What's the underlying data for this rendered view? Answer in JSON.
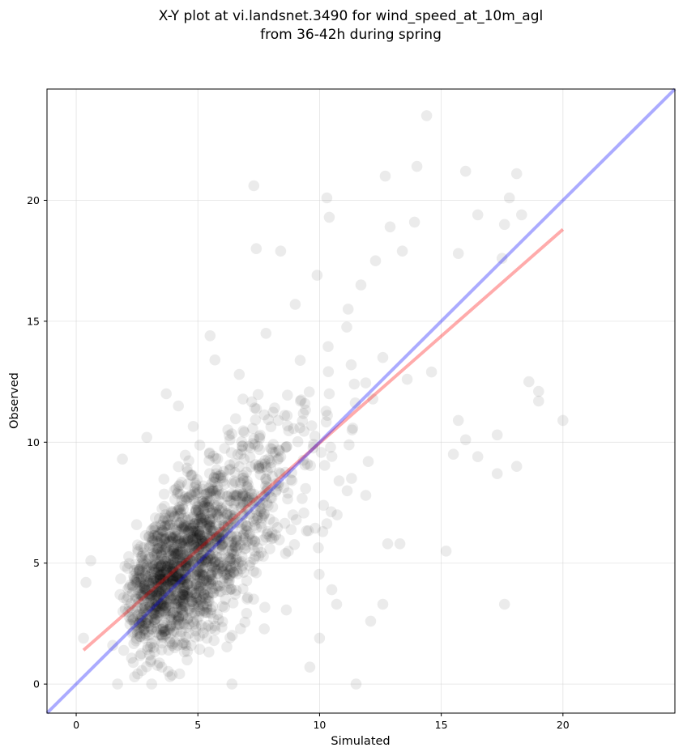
{
  "chart_data": {
    "type": "scatter",
    "title_lines": [
      "X-Y plot at vi.landsnet.3490 for wind_speed_at_10m_agl",
      "from 36-42h during spring"
    ],
    "xlabel": "Simulated",
    "ylabel": "Observed",
    "xlim": [
      -1.2,
      24.6
    ],
    "ylim": [
      -1.2,
      24.6
    ],
    "xticks": [
      0,
      5,
      10,
      15,
      20
    ],
    "yticks": [
      0,
      5,
      10,
      15,
      20
    ],
    "tick_labels": {
      "x": [
        "0",
        "5",
        "10",
        "15",
        "20"
      ],
      "y": [
        "0",
        "5",
        "10",
        "15",
        "20"
      ]
    },
    "grid": true,
    "point_color": "#000000",
    "point_alpha": 0.08,
    "points_approx_count": 1800,
    "points_core_cluster": {
      "x_center": 4.8,
      "y_center": 5.5
    },
    "points": [
      [
        14.4,
        23.5
      ],
      [
        14.0,
        21.4
      ],
      [
        16.0,
        21.2
      ],
      [
        18.1,
        21.1
      ],
      [
        12.7,
        21.0
      ],
      [
        7.3,
        20.6
      ],
      [
        17.8,
        20.1
      ],
      [
        10.3,
        20.1
      ],
      [
        10.4,
        19.3
      ],
      [
        16.5,
        19.4
      ],
      [
        18.3,
        19.4
      ],
      [
        13.9,
        19.1
      ],
      [
        17.6,
        19.0
      ],
      [
        12.9,
        18.9
      ],
      [
        15.7,
        17.8
      ],
      [
        7.4,
        18.0
      ],
      [
        8.4,
        17.9
      ],
      [
        17.5,
        17.6
      ],
      [
        20.0,
        10.9
      ],
      [
        18.6,
        12.5
      ],
      [
        19.0,
        12.1
      ],
      [
        19.0,
        11.7
      ],
      [
        18.1,
        9.0
      ],
      [
        17.3,
        10.3
      ],
      [
        17.3,
        8.7
      ],
      [
        16.0,
        10.1
      ],
      [
        16.5,
        9.4
      ],
      [
        15.7,
        10.9
      ],
      [
        15.5,
        9.5
      ],
      [
        15.2,
        5.5
      ],
      [
        17.6,
        3.3
      ],
      [
        11.5,
        0.0
      ],
      [
        12.1,
        2.6
      ],
      [
        12.6,
        3.3
      ],
      [
        13.3,
        5.8
      ],
      [
        12.8,
        5.8
      ],
      [
        10.7,
        3.3
      ],
      [
        10.5,
        3.9
      ],
      [
        10.0,
        1.9
      ],
      [
        9.6,
        0.7
      ],
      [
        6.4,
        0.0
      ],
      [
        3.1,
        0.0
      ],
      [
        2.4,
        0.3
      ],
      [
        1.7,
        0.0
      ],
      [
        0.3,
        1.9
      ],
      [
        0.4,
        4.2
      ],
      [
        0.6,
        5.1
      ],
      [
        1.9,
        9.3
      ],
      [
        2.9,
        10.2
      ],
      [
        3.7,
        12.0
      ],
      [
        4.2,
        11.5
      ],
      [
        5.5,
        14.4
      ],
      [
        5.7,
        13.4
      ],
      [
        6.7,
        12.8
      ],
      [
        7.8,
        14.5
      ],
      [
        9.0,
        15.7
      ],
      [
        9.9,
        16.9
      ],
      [
        11.7,
        16.5
      ],
      [
        12.3,
        17.5
      ],
      [
        13.4,
        17.9
      ],
      [
        8.3,
        10.9
      ],
      [
        9.4,
        11.6
      ],
      [
        10.4,
        12.0
      ],
      [
        11.3,
        13.2
      ],
      [
        12.6,
        13.5
      ],
      [
        13.6,
        12.6
      ],
      [
        14.6,
        12.9
      ],
      [
        12.0,
        9.2
      ],
      [
        10.8,
        8.4
      ],
      [
        11.9,
        7.8
      ],
      [
        9.5,
        9.1
      ],
      [
        8.7,
        7.9
      ],
      [
        7.6,
        7.1
      ],
      [
        6.6,
        6.1
      ],
      [
        5.4,
        5.2
      ],
      [
        4.3,
        4.3
      ],
      [
        3.4,
        3.1
      ],
      [
        2.5,
        2.2
      ],
      [
        1.5,
        1.6
      ],
      [
        4.6,
        6.9
      ],
      [
        5.6,
        8.0
      ],
      [
        6.9,
        9.3
      ],
      [
        3.6,
        6.1
      ],
      [
        2.7,
        5.2
      ],
      [
        1.8,
        3.7
      ],
      [
        3.9,
        2.1
      ],
      [
        5.1,
        3.0
      ],
      [
        6.3,
        3.9
      ],
      [
        7.4,
        4.6
      ],
      [
        8.6,
        5.4
      ]
    ],
    "series": [
      {
        "name": "",
        "type": "line",
        "color": "#ff0000",
        "alpha": 0.33,
        "x": [
          0.3,
          20.0
        ],
        "y": [
          1.4,
          18.8
        ]
      },
      {
        "name": "",
        "type": "line",
        "color": "#0000ff",
        "alpha": 0.33,
        "x": [
          -1.2,
          24.6
        ],
        "y": [
          -1.2,
          24.6
        ]
      }
    ]
  }
}
